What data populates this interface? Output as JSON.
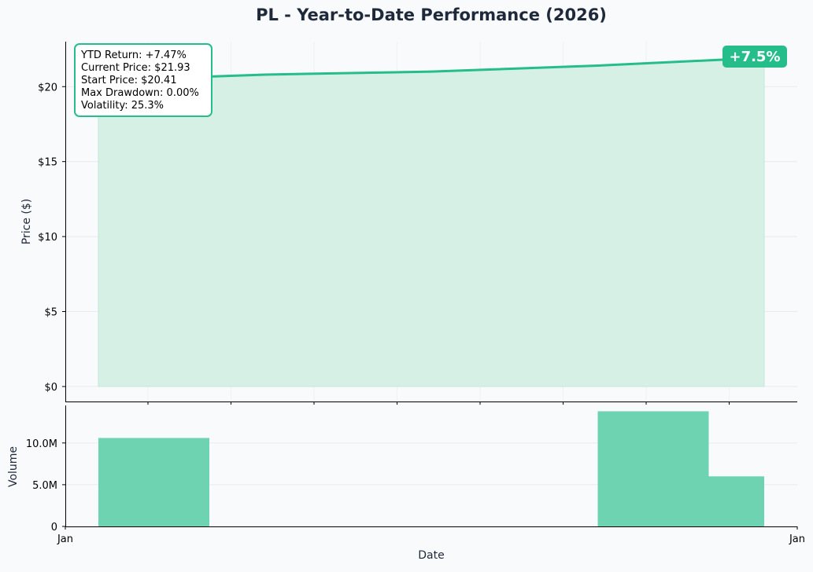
{
  "chart_data": [
    {
      "type": "area",
      "title": "PL - Year-to-Date Performance (2026)",
      "ylabel": "Price ($)",
      "x": [
        1,
        2,
        3,
        4,
        5
      ],
      "series": [
        {
          "values": [
            20.41,
            20.8,
            21.0,
            21.4,
            21.93
          ]
        }
      ],
      "ylim": [
        -1.0,
        23.0
      ],
      "yticks": [
        0,
        5,
        10,
        15,
        20
      ],
      "ytick_labels": [
        "$0",
        "$5",
        "$10",
        "$15",
        "$20"
      ],
      "grid": true,
      "stats_box": {
        "lines": [
          "YTD Return: +7.47%",
          "Current Price: $21.93",
          "Start Price: $20.41",
          "Max Drawdown: 0.00%",
          "Volatility: 25.3%"
        ]
      },
      "badge": "+7.5%",
      "colors": {
        "line": "#25bd8a",
        "fill": "#d7f0e6",
        "badge": "#25bd8a",
        "title": "#1e293b"
      }
    },
    {
      "type": "bar",
      "ylabel": "Volume",
      "xlabel": "Date",
      "x": [
        1,
        2,
        3,
        4,
        5
      ],
      "values": [
        10600000,
        0,
        0,
        13800000,
        6000000
      ],
      "ylim": [
        0,
        14500000
      ],
      "yticks": [
        0,
        5000000,
        10000000
      ],
      "ytick_labels": [
        "0",
        "5.0M",
        "10.0M"
      ],
      "xtick_labels": [
        "Jan",
        "Jan"
      ],
      "grid": true,
      "colors": {
        "bar": "#6dd3b0"
      }
    }
  ]
}
